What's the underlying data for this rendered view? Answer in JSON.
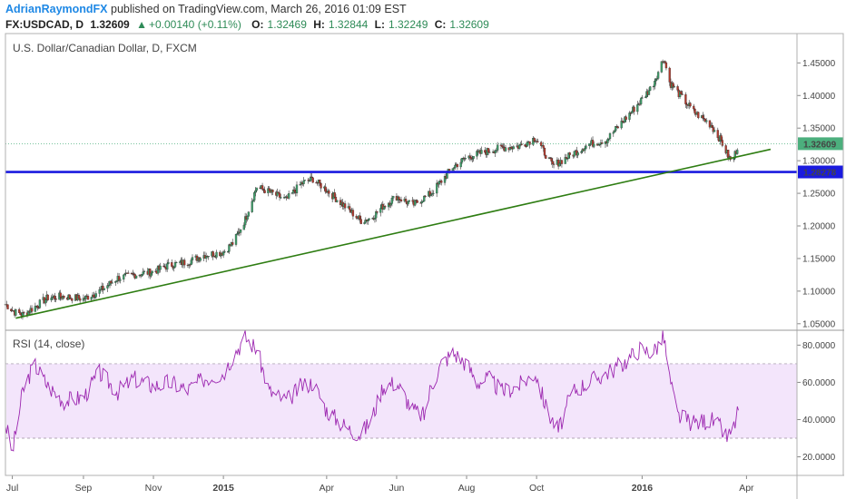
{
  "header": {
    "author": "AdrianRaymondFX",
    "published": "published on TradingView.com, March 26, 2016 01:09 EST"
  },
  "quote": {
    "symbol": "FX:USDCAD, D",
    "last": "1.32609",
    "change": "+0.00140 (+0.11%)",
    "open_label": "O:",
    "open": "1.32469",
    "high_label": "H:",
    "high": "1.32844",
    "low_label": "L:",
    "low": "1.32249",
    "close_label": "C:",
    "close": "1.32609"
  },
  "chart_data": [
    {
      "type": "candlestick",
      "title": "U.S. Dollar/Canadian Dollar, D, FXCM",
      "y_ticks": [
        "1.45000",
        "1.40000",
        "1.35000",
        "1.30000",
        "1.25000",
        "1.20000",
        "1.15000",
        "1.10000",
        "1.05000"
      ],
      "ylim": [
        1.04,
        1.495
      ],
      "x_ticks": [
        "Jul",
        "Sep",
        "Nov",
        "2015",
        "Apr",
        "Jun",
        "Aug",
        "Oct",
        "2016",
        "Apr"
      ],
      "price_marker": {
        "value": "1.32609",
        "color": "#4caf7d"
      },
      "horizontal_line": {
        "value": 1.28278,
        "label": "1.28278",
        "color": "#1a1adf"
      },
      "trendline": {
        "color": "#2e7d12",
        "from": {
          "date": "2014-07-04",
          "price": 1.0585
        },
        "to": {
          "date": "2016-04-22",
          "price": 1.3175
        }
      },
      "close_path": [
        [
          "2014-06-25",
          1.08
        ],
        [
          "2014-07-03",
          1.068
        ],
        [
          "2014-07-10",
          1.064
        ],
        [
          "2014-07-20",
          1.075
        ],
        [
          "2014-08-01",
          1.09
        ],
        [
          "2014-08-15",
          1.092
        ],
        [
          "2014-09-01",
          1.088
        ],
        [
          "2014-09-15",
          1.1
        ],
        [
          "2014-10-01",
          1.12
        ],
        [
          "2014-10-15",
          1.125
        ],
        [
          "2014-11-01",
          1.13
        ],
        [
          "2014-11-15",
          1.14
        ],
        [
          "2014-12-01",
          1.145
        ],
        [
          "2014-12-15",
          1.155
        ],
        [
          "2015-01-01",
          1.16
        ],
        [
          "2015-01-10",
          1.175
        ],
        [
          "2015-01-20",
          1.21
        ],
        [
          "2015-01-30",
          1.26
        ],
        [
          "2015-02-10",
          1.252
        ],
        [
          "2015-02-25",
          1.24
        ],
        [
          "2015-03-10",
          1.265
        ],
        [
          "2015-03-20",
          1.272
        ],
        [
          "2015-04-01",
          1.255
        ],
        [
          "2015-04-20",
          1.225
        ],
        [
          "2015-05-01",
          1.208
        ],
        [
          "2015-05-10",
          1.212
        ],
        [
          "2015-05-20",
          1.23
        ],
        [
          "2015-06-01",
          1.245
        ],
        [
          "2015-06-15",
          1.232
        ],
        [
          "2015-07-01",
          1.25
        ],
        [
          "2015-07-20",
          1.29
        ],
        [
          "2015-08-01",
          1.305
        ],
        [
          "2015-08-20",
          1.315
        ],
        [
          "2015-09-01",
          1.32
        ],
        [
          "2015-09-15",
          1.322
        ],
        [
          "2015-09-30",
          1.335
        ],
        [
          "2015-10-15",
          1.292
        ],
        [
          "2015-11-01",
          1.31
        ],
        [
          "2015-11-15",
          1.325
        ],
        [
          "2015-12-01",
          1.332
        ],
        [
          "2015-12-15",
          1.36
        ],
        [
          "2015-12-30",
          1.39
        ],
        [
          "2016-01-10",
          1.415
        ],
        [
          "2016-01-20",
          1.458
        ],
        [
          "2016-01-25",
          1.42
        ],
        [
          "2016-02-01",
          1.405
        ],
        [
          "2016-02-15",
          1.375
        ],
        [
          "2016-03-01",
          1.355
        ],
        [
          "2016-03-10",
          1.33
        ],
        [
          "2016-03-18",
          1.3
        ],
        [
          "2016-03-21",
          1.305
        ],
        [
          "2016-03-25",
          1.326
        ]
      ]
    },
    {
      "type": "line",
      "title": "RSI (14, close)",
      "series": [
        {
          "name": "RSI (14, close)",
          "color": "#9c27b0"
        }
      ],
      "y_ticks": [
        "80.0000",
        "60.0000",
        "40.0000",
        "20.0000"
      ],
      "ylim": [
        10,
        88
      ],
      "bands": {
        "upper": 70,
        "lower": 30,
        "fill": "#f3e5fb"
      },
      "x_ticks": [
        "Jul",
        "Sep",
        "Nov",
        "2015",
        "Apr",
        "Jun",
        "Aug",
        "Oct",
        "2016",
        "Apr"
      ],
      "rsi_path": [
        [
          "2014-06-25",
          38
        ],
        [
          "2014-07-01",
          22
        ],
        [
          "2014-07-10",
          55
        ],
        [
          "2014-07-20",
          70
        ],
        [
          "2014-08-01",
          58
        ],
        [
          "2014-08-15",
          50
        ],
        [
          "2014-09-01",
          52
        ],
        [
          "2014-09-15",
          65
        ],
        [
          "2014-10-01",
          55
        ],
        [
          "2014-10-15",
          62
        ],
        [
          "2014-11-01",
          58
        ],
        [
          "2014-11-15",
          60
        ],
        [
          "2014-12-01",
          56
        ],
        [
          "2014-12-15",
          62
        ],
        [
          "2015-01-01",
          65
        ],
        [
          "2015-01-10",
          75
        ],
        [
          "2015-01-20",
          84
        ],
        [
          "2015-01-30",
          78
        ],
        [
          "2015-02-10",
          55
        ],
        [
          "2015-02-25",
          50
        ],
        [
          "2015-03-10",
          58
        ],
        [
          "2015-03-20",
          60
        ],
        [
          "2015-04-01",
          45
        ],
        [
          "2015-04-10",
          40
        ],
        [
          "2015-04-20",
          35
        ],
        [
          "2015-05-01",
          32
        ],
        [
          "2015-05-10",
          40
        ],
        [
          "2015-05-20",
          58
        ],
        [
          "2015-06-01",
          60
        ],
        [
          "2015-06-15",
          45
        ],
        [
          "2015-06-25",
          42
        ],
        [
          "2015-07-01",
          58
        ],
        [
          "2015-07-10",
          70
        ],
        [
          "2015-07-20",
          76
        ],
        [
          "2015-08-01",
          70
        ],
        [
          "2015-08-10",
          60
        ],
        [
          "2015-08-20",
          62
        ],
        [
          "2015-09-01",
          55
        ],
        [
          "2015-09-15",
          58
        ],
        [
          "2015-09-30",
          65
        ],
        [
          "2015-10-10",
          45
        ],
        [
          "2015-10-20",
          34
        ],
        [
          "2015-11-01",
          55
        ],
        [
          "2015-11-15",
          60
        ],
        [
          "2015-12-01",
          65
        ],
        [
          "2015-12-15",
          70
        ],
        [
          "2015-12-30",
          78
        ],
        [
          "2016-01-10",
          76
        ],
        [
          "2016-01-20",
          84
        ],
        [
          "2016-01-25",
          62
        ],
        [
          "2016-02-01",
          42
        ],
        [
          "2016-02-15",
          38
        ],
        [
          "2016-03-01",
          40
        ],
        [
          "2016-03-10",
          35
        ],
        [
          "2016-03-15",
          30
        ],
        [
          "2016-03-20",
          34
        ],
        [
          "2016-03-25",
          45
        ]
      ]
    }
  ]
}
